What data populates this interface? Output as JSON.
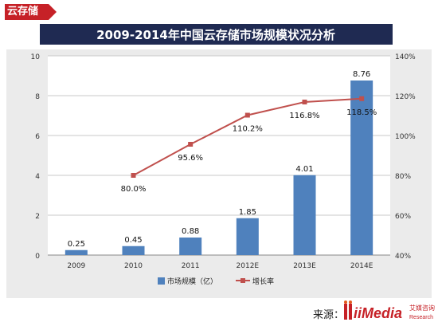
{
  "corner_tag": "云存储",
  "source_label": "来源：",
  "logo_text": "iiMedia",
  "logo_sub": "艾媒咨询",
  "logo_research": "Research",
  "colors": {
    "bar": "#4f81bd",
    "line": "#c0504d",
    "title_bg": "#1f2a52",
    "title_fg": "#ffffff",
    "tag": "#c62127",
    "plot_bg": "#ffffff"
  },
  "chart_data": {
    "type": "bar",
    "title": "2009-2014年中国云存储市场规模状况分析",
    "categories": [
      "2009",
      "2010",
      "2011",
      "2012E",
      "2013E",
      "2014E"
    ],
    "series": [
      {
        "name": "市场规模（亿）",
        "type": "bar",
        "axis": "left",
        "values": [
          0.25,
          0.45,
          0.88,
          1.85,
          4.01,
          8.76
        ],
        "labels": [
          "0.25",
          "0.45",
          "0.88",
          "1.85",
          "4.01",
          "8.76"
        ]
      },
      {
        "name": "增长率",
        "type": "line",
        "axis": "right",
        "values": [
          null,
          80.0,
          95.6,
          110.2,
          116.8,
          118.5
        ],
        "labels": [
          "",
          "80.0%",
          "95.6%",
          "110.2%",
          "116.8%",
          "118.5%"
        ]
      }
    ],
    "y_left": {
      "min": 0,
      "max": 10,
      "ticks": [
        "0",
        "2",
        "4",
        "6",
        "8",
        "10"
      ]
    },
    "y_right": {
      "min": 40,
      "max": 140,
      "ticks": [
        "40%",
        "60%",
        "80%",
        "100%",
        "120%",
        "140%"
      ]
    },
    "grid": true,
    "legend_position": "bottom"
  }
}
